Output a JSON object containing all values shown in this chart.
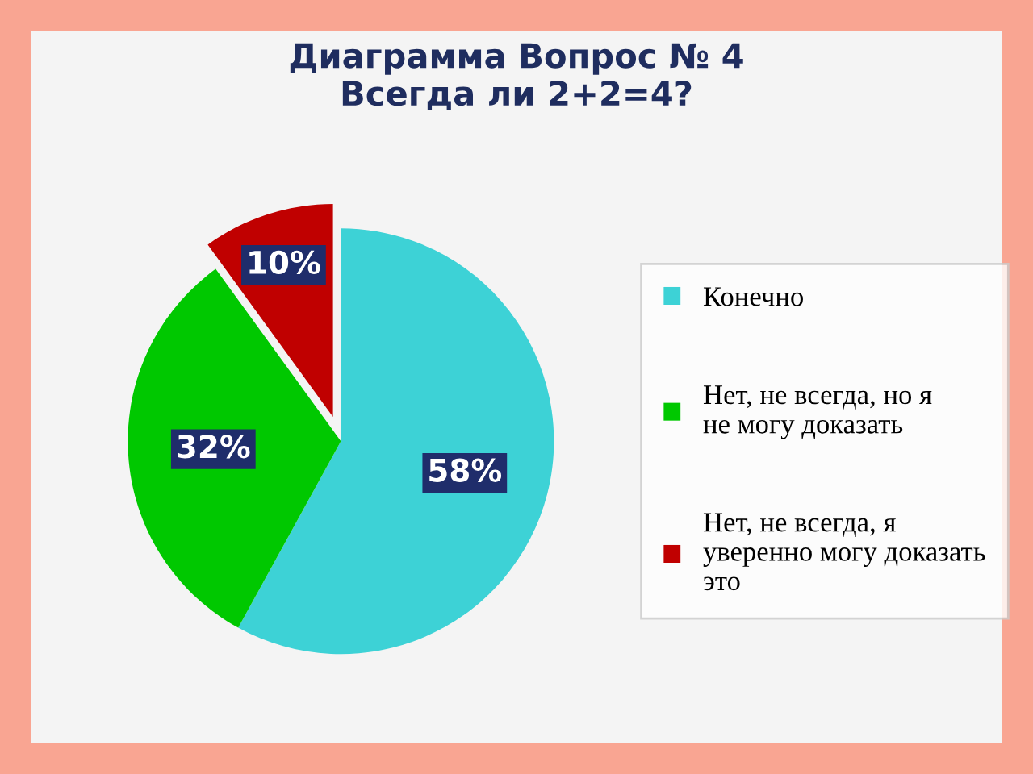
{
  "chart_data": {
    "type": "pie",
    "title": "Диаграмма Вопрос № 4\nВсегда ли 2+2=4?",
    "categories": [
      "Конечно",
      "Нет, не всегда, но я не могу доказать",
      "Нет, не всегда, я уверенно могу доказать это"
    ],
    "values": [
      58,
      32,
      10
    ],
    "colors": [
      "#3dd2d6",
      "#00c800",
      "#c00000"
    ],
    "value_labels": [
      "58%",
      "32%",
      "10%"
    ],
    "legend": "right"
  }
}
